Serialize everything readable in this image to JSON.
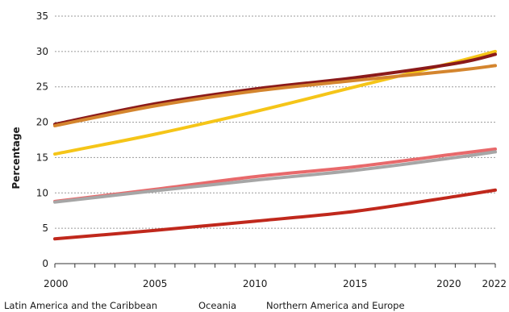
{
  "chart_data": {
    "type": "line",
    "ylabel": "Percentage",
    "xlabel": "",
    "ylim": [
      0,
      35
    ],
    "yticks": [
      0,
      5,
      10,
      15,
      20,
      25,
      30,
      35
    ],
    "xlim": [
      2000,
      2022
    ],
    "xticks": [
      2000,
      2005,
      2010,
      2015,
      2020,
      2022
    ],
    "grid": true,
    "x": [
      2000,
      2005,
      2010,
      2015,
      2020,
      2022
    ],
    "series": [
      {
        "color": "#f5c518",
        "values": [
          15.5,
          18.3,
          21.5,
          25.0,
          28.5,
          30.0
        ]
      },
      {
        "color": "#8b1a1a",
        "values": [
          19.7,
          22.6,
          24.7,
          26.3,
          28.3,
          29.6
        ]
      },
      {
        "color": "#d4852e",
        "values": [
          19.5,
          22.3,
          24.4,
          25.9,
          27.3,
          28.0
        ]
      },
      {
        "color": "#e8696b",
        "values": [
          8.8,
          10.5,
          12.3,
          13.7,
          15.5,
          16.2
        ]
      },
      {
        "color": "#a6a6a6",
        "values": [
          8.7,
          10.3,
          11.8,
          13.2,
          15.0,
          15.8
        ]
      },
      {
        "color": "#c0281c",
        "values": [
          3.5,
          4.7,
          6.0,
          7.4,
          9.5,
          10.4
        ]
      }
    ],
    "legend": {
      "placement": "bottom",
      "entries": [
        "Latin America and the Caribbean",
        "Oceania",
        "Northern America and Europe"
      ]
    }
  }
}
